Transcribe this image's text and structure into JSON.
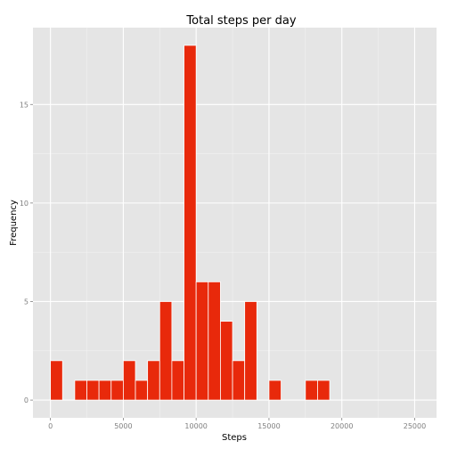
{
  "chart_data": {
    "type": "bar",
    "title": "Total steps per day",
    "xlabel": "Steps",
    "ylabel": "Frequency",
    "bin_width": 833,
    "bins": [
      {
        "x0": 0,
        "x1": 833,
        "count": 2
      },
      {
        "x0": 833,
        "x1": 1667,
        "count": 0
      },
      {
        "x0": 1667,
        "x1": 2500,
        "count": 1
      },
      {
        "x0": 2500,
        "x1": 3333,
        "count": 1
      },
      {
        "x0": 3333,
        "x1": 4167,
        "count": 1
      },
      {
        "x0": 4167,
        "x1": 5000,
        "count": 1
      },
      {
        "x0": 5000,
        "x1": 5833,
        "count": 2
      },
      {
        "x0": 5833,
        "x1": 6667,
        "count": 1
      },
      {
        "x0": 6667,
        "x1": 7500,
        "count": 2
      },
      {
        "x0": 7500,
        "x1": 8333,
        "count": 5
      },
      {
        "x0": 8333,
        "x1": 9167,
        "count": 2
      },
      {
        "x0": 9167,
        "x1": 10000,
        "count": 18
      },
      {
        "x0": 10000,
        "x1": 10833,
        "count": 6
      },
      {
        "x0": 10833,
        "x1": 11667,
        "count": 6
      },
      {
        "x0": 11667,
        "x1": 12500,
        "count": 4
      },
      {
        "x0": 12500,
        "x1": 13333,
        "count": 2
      },
      {
        "x0": 13333,
        "x1": 14167,
        "count": 5
      },
      {
        "x0": 14167,
        "x1": 15000,
        "count": 0
      },
      {
        "x0": 15000,
        "x1": 15833,
        "count": 1
      },
      {
        "x0": 15833,
        "x1": 16667,
        "count": 0
      },
      {
        "x0": 16667,
        "x1": 17500,
        "count": 0
      },
      {
        "x0": 17500,
        "x1": 18333,
        "count": 1
      },
      {
        "x0": 18333,
        "x1": 19167,
        "count": 1
      }
    ],
    "xlim": [
      -1200,
      26500
    ],
    "ylim": [
      -0.9,
      18.9
    ],
    "x_ticks": [
      0,
      5000,
      10000,
      15000,
      20000,
      25000
    ],
    "x_tick_labels": [
      "0",
      "5000",
      "10000",
      "15000",
      "20000",
      "25000"
    ],
    "y_ticks": [
      0,
      5,
      10,
      15
    ],
    "y_tick_labels": [
      "0",
      "5",
      "10",
      "15"
    ],
    "grid": true,
    "bar_color": "#e8290b",
    "bar_edge_color": "#ffffff",
    "panel_color": "#e5e5e5",
    "grid_color": "#ffffff"
  }
}
